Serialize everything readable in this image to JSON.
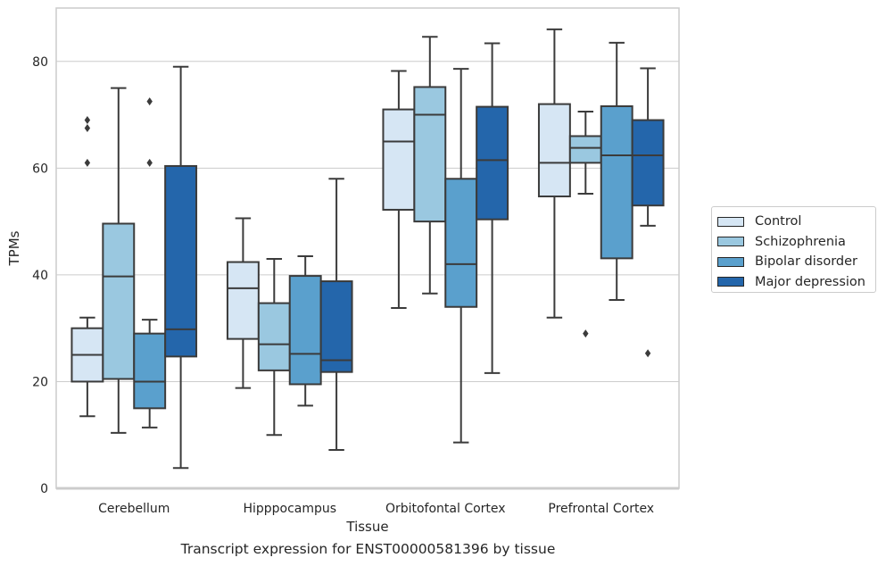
{
  "chart_data": {
    "type": "box",
    "xlabel": "Tissue",
    "ylabel": "TPMs",
    "caption": "Transcript expression for ENST00000581396 by tissue",
    "categories": [
      "Cerebellum",
      "Hipppocampus",
      "Orbitofontal Cortex",
      "Prefrontal Cortex"
    ],
    "ylim": [
      0,
      90
    ],
    "yticks": [
      0,
      20,
      40,
      60,
      80
    ],
    "grid": "horizontal",
    "legend_position": "right",
    "series": [
      {
        "name": "Control",
        "color": "#d6e6f4",
        "boxes": [
          {
            "whislo": 13.5,
            "q1": 20,
            "med": 25,
            "q3": 30,
            "whishi": 32,
            "fliers": [
              61,
              67.5,
              69
            ]
          },
          {
            "whislo": 18.8,
            "q1": 28,
            "med": 37.5,
            "q3": 42.4,
            "whishi": 50.6,
            "fliers": []
          },
          {
            "whislo": 33.8,
            "q1": 52.2,
            "med": 65,
            "q3": 71,
            "whishi": 78.2,
            "fliers": []
          },
          {
            "whislo": 32,
            "q1": 54.7,
            "med": 61,
            "q3": 72,
            "whishi": 86,
            "fliers": []
          }
        ]
      },
      {
        "name": "Schizophrenia",
        "color": "#9ac8e0",
        "boxes": [
          {
            "whislo": 10.4,
            "q1": 20.5,
            "med": 39.7,
            "q3": 49.6,
            "whishi": 75,
            "fliers": []
          },
          {
            "whislo": 10,
            "q1": 22.1,
            "med": 27,
            "q3": 34.7,
            "whishi": 43,
            "fliers": []
          },
          {
            "whislo": 36.5,
            "q1": 50,
            "med": 70,
            "q3": 75.2,
            "whishi": 84.6,
            "fliers": []
          },
          {
            "whislo": 55.2,
            "q1": 61,
            "med": 63.8,
            "q3": 66,
            "whishi": 70.6,
            "fliers": [
              29
            ]
          }
        ]
      },
      {
        "name": "Bipolar disorder",
        "color": "#5aa0cd",
        "boxes": [
          {
            "whislo": 11.4,
            "q1": 15,
            "med": 20,
            "q3": 29,
            "whishi": 31.6,
            "fliers": [
              61,
              72.5
            ]
          },
          {
            "whislo": 15.5,
            "q1": 19.5,
            "med": 25.2,
            "q3": 39.8,
            "whishi": 43.5,
            "fliers": []
          },
          {
            "whislo": 8.6,
            "q1": 34,
            "med": 42,
            "q3": 58,
            "whishi": 78.6,
            "fliers": []
          },
          {
            "whislo": 35.3,
            "q1": 43.1,
            "med": 62.4,
            "q3": 71.6,
            "whishi": 83.5,
            "fliers": []
          }
        ]
      },
      {
        "name": "Major depression",
        "color": "#2466ab",
        "boxes": [
          {
            "whislo": 3.8,
            "q1": 24.7,
            "med": 29.8,
            "q3": 60.4,
            "whishi": 79,
            "fliers": []
          },
          {
            "whislo": 7.2,
            "q1": 21.8,
            "med": 24,
            "q3": 38.8,
            "whishi": 58,
            "fliers": []
          },
          {
            "whislo": 21.6,
            "q1": 50.4,
            "med": 61.5,
            "q3": 71.5,
            "whishi": 83.4,
            "fliers": []
          },
          {
            "whislo": 49.2,
            "q1": 53,
            "med": 62.4,
            "q3": 69,
            "whishi": 78.7,
            "fliers": [
              25.3
            ]
          }
        ]
      }
    ]
  }
}
